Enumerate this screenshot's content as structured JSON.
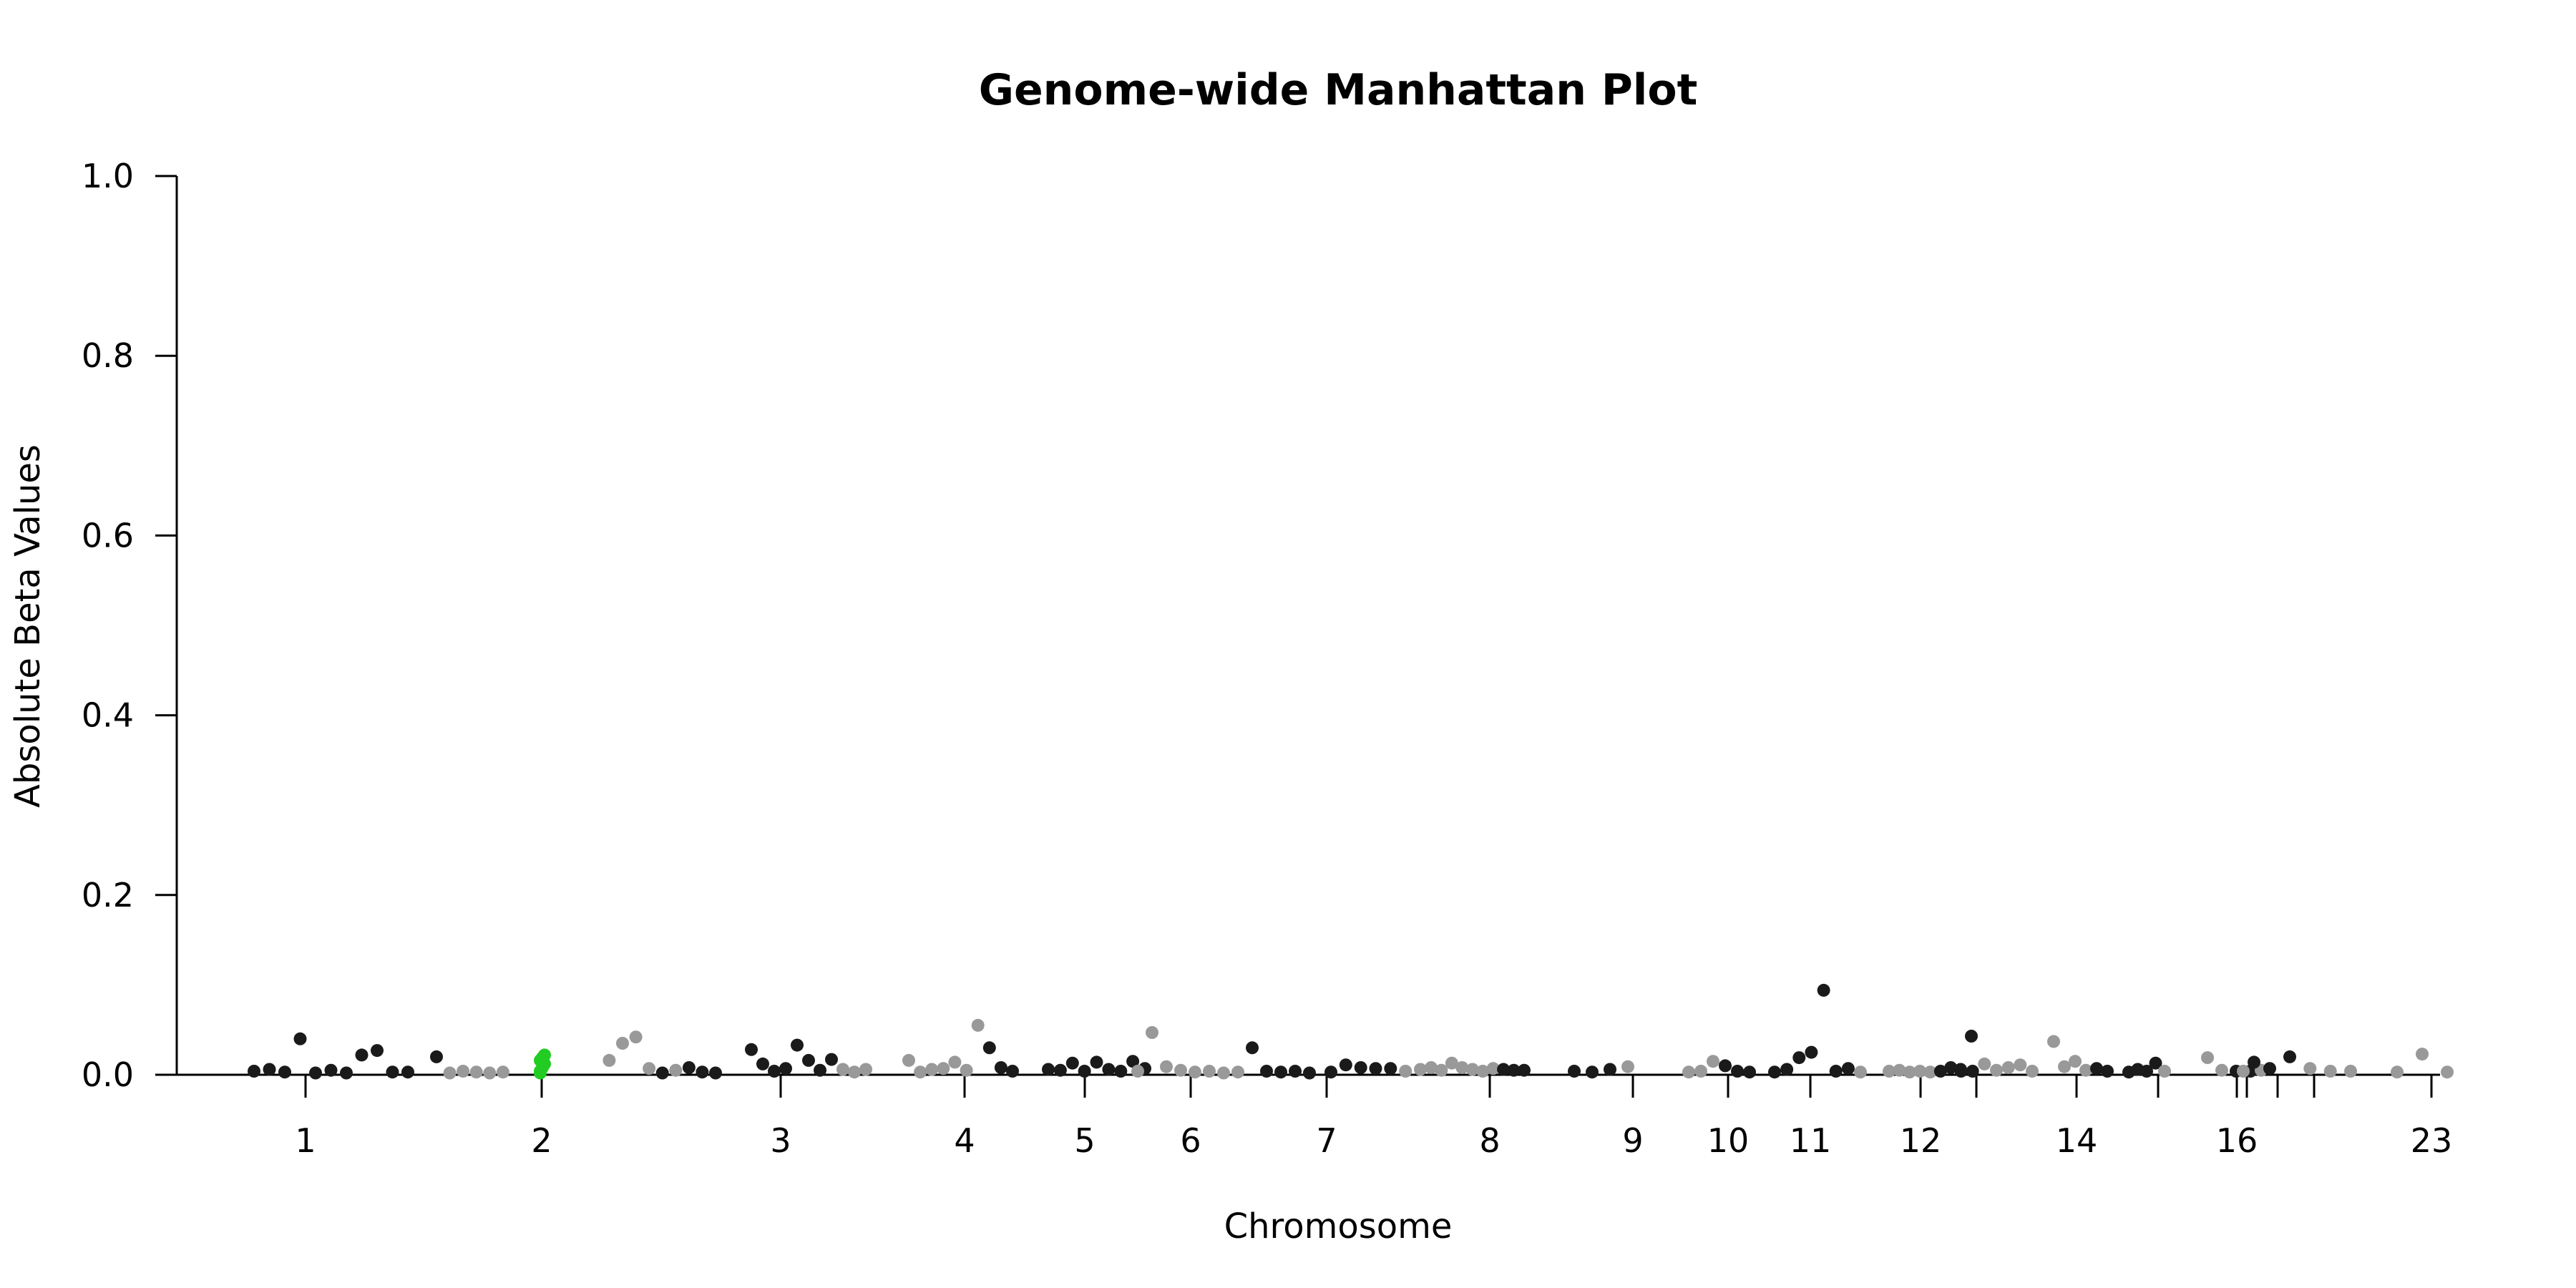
{
  "chart_data": {
    "type": "scatter",
    "title": "Genome-wide Manhattan Plot",
    "xlabel": "Chromosome",
    "ylabel": "Absolute Beta Values",
    "ylim": [
      0,
      1.0
    ],
    "yticks": [
      "0.0",
      "0.2",
      "0.4",
      "0.6",
      "0.8",
      "1.0"
    ],
    "xticks": [
      "1",
      "2",
      "3",
      "4",
      "5",
      "6",
      "7",
      "8",
      "9",
      "10",
      "11",
      "12",
      "",
      "14",
      "",
      "16",
      "",
      "",
      "",
      "23"
    ],
    "grid": false,
    "colors": {
      "dark": "#1a1a1a",
      "light": "#999999",
      "highlight": "#22cc22"
    },
    "points": [
      {
        "chr": "1",
        "y": 0.004,
        "c": "dark"
      },
      {
        "chr": "1",
        "y": 0.006,
        "c": "dark"
      },
      {
        "chr": "1",
        "y": 0.003,
        "c": "dark"
      },
      {
        "chr": "1",
        "y": 0.04,
        "c": "dark"
      },
      {
        "chr": "1",
        "y": 0.002,
        "c": "dark"
      },
      {
        "chr": "1",
        "y": 0.005,
        "c": "dark"
      },
      {
        "chr": "1",
        "y": 0.002,
        "c": "dark"
      },
      {
        "chr": "1",
        "y": 0.022,
        "c": "dark"
      },
      {
        "chr": "1",
        "y": 0.027,
        "c": "dark"
      },
      {
        "chr": "1",
        "y": 0.003,
        "c": "dark"
      },
      {
        "chr": "1",
        "y": 0.003,
        "c": "dark"
      },
      {
        "chr": "2",
        "y": 0.02,
        "c": "dark"
      },
      {
        "chr": "2",
        "y": 0.002,
        "c": "light"
      },
      {
        "chr": "2",
        "y": 0.004,
        "c": "light"
      },
      {
        "chr": "2",
        "y": 0.003,
        "c": "light"
      },
      {
        "chr": "2",
        "y": 0.002,
        "c": "light"
      },
      {
        "chr": "2",
        "y": 0.003,
        "c": "light"
      },
      {
        "chr": "2",
        "y": 0.004,
        "c": "highlight"
      },
      {
        "chr": "2",
        "y": 0.008,
        "c": "highlight"
      },
      {
        "chr": "2",
        "y": 0.012,
        "c": "highlight"
      },
      {
        "chr": "2",
        "y": 0.016,
        "c": "highlight"
      },
      {
        "chr": "2",
        "y": 0.019,
        "c": "highlight"
      },
      {
        "chr": "2",
        "y": 0.022,
        "c": "highlight"
      },
      {
        "chr": "2",
        "y": 0.002,
        "c": "highlight"
      },
      {
        "chr": "2",
        "y": 0.016,
        "c": "light"
      },
      {
        "chr": "2",
        "y": 0.035,
        "c": "light"
      },
      {
        "chr": "2",
        "y": 0.042,
        "c": "light"
      },
      {
        "chr": "2",
        "y": 0.007,
        "c": "light"
      },
      {
        "chr": "2",
        "y": 0.002,
        "c": "dark"
      },
      {
        "chr": "2",
        "y": 0.005,
        "c": "light"
      },
      {
        "chr": "2",
        "y": 0.008,
        "c": "dark"
      },
      {
        "chr": "2",
        "y": 0.003,
        "c": "dark"
      },
      {
        "chr": "2",
        "y": 0.002,
        "c": "dark"
      },
      {
        "chr": "3",
        "y": 0.028,
        "c": "dark"
      },
      {
        "chr": "3",
        "y": 0.012,
        "c": "dark"
      },
      {
        "chr": "3",
        "y": 0.004,
        "c": "dark"
      },
      {
        "chr": "3",
        "y": 0.007,
        "c": "dark"
      },
      {
        "chr": "3",
        "y": 0.033,
        "c": "dark"
      },
      {
        "chr": "3",
        "y": 0.016,
        "c": "dark"
      },
      {
        "chr": "3",
        "y": 0.005,
        "c": "dark"
      },
      {
        "chr": "3",
        "y": 0.017,
        "c": "dark"
      },
      {
        "chr": "3",
        "y": 0.006,
        "c": "light"
      },
      {
        "chr": "3",
        "y": 0.003,
        "c": "light"
      },
      {
        "chr": "3",
        "y": 0.006,
        "c": "light"
      },
      {
        "chr": "4",
        "y": 0.016,
        "c": "light"
      },
      {
        "chr": "4",
        "y": 0.003,
        "c": "light"
      },
      {
        "chr": "4",
        "y": 0.006,
        "c": "light"
      },
      {
        "chr": "4",
        "y": 0.007,
        "c": "light"
      },
      {
        "chr": "4",
        "y": 0.014,
        "c": "light"
      },
      {
        "chr": "4",
        "y": 0.005,
        "c": "light"
      },
      {
        "chr": "4",
        "y": 0.055,
        "c": "light"
      },
      {
        "chr": "4",
        "y": 0.03,
        "c": "dark"
      },
      {
        "chr": "4",
        "y": 0.008,
        "c": "dark"
      },
      {
        "chr": "4",
        "y": 0.004,
        "c": "dark"
      },
      {
        "chr": "5",
        "y": 0.006,
        "c": "dark"
      },
      {
        "chr": "5",
        "y": 0.005,
        "c": "dark"
      },
      {
        "chr": "5",
        "y": 0.013,
        "c": "dark"
      },
      {
        "chr": "5",
        "y": 0.004,
        "c": "dark"
      },
      {
        "chr": "5",
        "y": 0.014,
        "c": "dark"
      },
      {
        "chr": "5",
        "y": 0.006,
        "c": "dark"
      },
      {
        "chr": "5",
        "y": 0.004,
        "c": "dark"
      },
      {
        "chr": "5",
        "y": 0.015,
        "c": "dark"
      },
      {
        "chr": "5",
        "y": 0.007,
        "c": "dark"
      },
      {
        "chr": "6",
        "y": 0.004,
        "c": "light"
      },
      {
        "chr": "6",
        "y": 0.047,
        "c": "light"
      },
      {
        "chr": "6",
        "y": 0.009,
        "c": "light"
      },
      {
        "chr": "6",
        "y": 0.005,
        "c": "light"
      },
      {
        "chr": "6",
        "y": 0.003,
        "c": "light"
      },
      {
        "chr": "6",
        "y": 0.004,
        "c": "light"
      },
      {
        "chr": "6",
        "y": 0.002,
        "c": "light"
      },
      {
        "chr": "6",
        "y": 0.003,
        "c": "light"
      },
      {
        "chr": "6",
        "y": 0.03,
        "c": "dark"
      },
      {
        "chr": "6",
        "y": 0.004,
        "c": "dark"
      },
      {
        "chr": "6",
        "y": 0.003,
        "c": "dark"
      },
      {
        "chr": "6",
        "y": 0.004,
        "c": "dark"
      },
      {
        "chr": "6",
        "y": 0.002,
        "c": "dark"
      },
      {
        "chr": "7",
        "y": 0.003,
        "c": "dark"
      },
      {
        "chr": "7",
        "y": 0.011,
        "c": "dark"
      },
      {
        "chr": "7",
        "y": 0.008,
        "c": "dark"
      },
      {
        "chr": "7",
        "y": 0.007,
        "c": "dark"
      },
      {
        "chr": "7",
        "y": 0.007,
        "c": "dark"
      },
      {
        "chr": "7",
        "y": 0.004,
        "c": "light"
      },
      {
        "chr": "7",
        "y": 0.006,
        "c": "light"
      },
      {
        "chr": "8",
        "y": 0.008,
        "c": "light"
      },
      {
        "chr": "8",
        "y": 0.005,
        "c": "light"
      },
      {
        "chr": "8",
        "y": 0.013,
        "c": "light"
      },
      {
        "chr": "8",
        "y": 0.008,
        "c": "light"
      },
      {
        "chr": "8",
        "y": 0.006,
        "c": "light"
      },
      {
        "chr": "8",
        "y": 0.004,
        "c": "light"
      },
      {
        "chr": "8",
        "y": 0.007,
        "c": "light"
      },
      {
        "chr": "8",
        "y": 0.006,
        "c": "dark"
      },
      {
        "chr": "8",
        "y": 0.005,
        "c": "dark"
      },
      {
        "chr": "8",
        "y": 0.005,
        "c": "dark"
      },
      {
        "chr": "9",
        "y": 0.004,
        "c": "dark"
      },
      {
        "chr": "9",
        "y": 0.003,
        "c": "dark"
      },
      {
        "chr": "9",
        "y": 0.006,
        "c": "dark"
      },
      {
        "chr": "9",
        "y": 0.009,
        "c": "light"
      },
      {
        "chr": "10",
        "y": 0.003,
        "c": "light"
      },
      {
        "chr": "10",
        "y": 0.004,
        "c": "light"
      },
      {
        "chr": "10",
        "y": 0.015,
        "c": "light"
      },
      {
        "chr": "10",
        "y": 0.01,
        "c": "dark"
      },
      {
        "chr": "10",
        "y": 0.004,
        "c": "dark"
      },
      {
        "chr": "10",
        "y": 0.003,
        "c": "dark"
      },
      {
        "chr": "11",
        "y": 0.003,
        "c": "dark"
      },
      {
        "chr": "11",
        "y": 0.006,
        "c": "dark"
      },
      {
        "chr": "11",
        "y": 0.019,
        "c": "dark"
      },
      {
        "chr": "11",
        "y": 0.025,
        "c": "dark"
      },
      {
        "chr": "11",
        "y": 0.094,
        "c": "dark"
      },
      {
        "chr": "11",
        "y": 0.004,
        "c": "dark"
      },
      {
        "chr": "11",
        "y": 0.007,
        "c": "dark"
      },
      {
        "chr": "11",
        "y": 0.003,
        "c": "light"
      },
      {
        "chr": "12",
        "y": 0.004,
        "c": "light"
      },
      {
        "chr": "12",
        "y": 0.005,
        "c": "light"
      },
      {
        "chr": "12",
        "y": 0.003,
        "c": "light"
      },
      {
        "chr": "12",
        "y": 0.004,
        "c": "light"
      },
      {
        "chr": "12",
        "y": 0.003,
        "c": "light"
      },
      {
        "chr": "12",
        "y": 0.004,
        "c": "dark"
      },
      {
        "chr": "12",
        "y": 0.008,
        "c": "dark"
      },
      {
        "chr": "12",
        "y": 0.004,
        "c": "dark"
      },
      {
        "chr": "12",
        "y": 0.043,
        "c": "dark"
      },
      {
        "chr": "13",
        "y": 0.006,
        "c": "dark"
      },
      {
        "chr": "13",
        "y": 0.004,
        "c": "dark"
      },
      {
        "chr": "13",
        "y": 0.012,
        "c": "light"
      },
      {
        "chr": "13",
        "y": 0.005,
        "c": "light"
      },
      {
        "chr": "13",
        "y": 0.008,
        "c": "light"
      },
      {
        "chr": "13",
        "y": 0.011,
        "c": "light"
      },
      {
        "chr": "13",
        "y": 0.004,
        "c": "light"
      },
      {
        "chr": "14",
        "y": 0.037,
        "c": "light"
      },
      {
        "chr": "14",
        "y": 0.009,
        "c": "light"
      },
      {
        "chr": "14",
        "y": 0.015,
        "c": "light"
      },
      {
        "chr": "14",
        "y": 0.005,
        "c": "light"
      },
      {
        "chr": "14",
        "y": 0.007,
        "c": "dark"
      },
      {
        "chr": "14",
        "y": 0.004,
        "c": "dark"
      },
      {
        "chr": "15",
        "y": 0.003,
        "c": "dark"
      },
      {
        "chr": "15",
        "y": 0.006,
        "c": "dark"
      },
      {
        "chr": "15",
        "y": 0.004,
        "c": "dark"
      },
      {
        "chr": "15",
        "y": 0.013,
        "c": "dark"
      },
      {
        "chr": "15",
        "y": 0.004,
        "c": "light"
      },
      {
        "chr": "16",
        "y": 0.019,
        "c": "light"
      },
      {
        "chr": "16",
        "y": 0.005,
        "c": "light"
      },
      {
        "chr": "16",
        "y": 0.004,
        "c": "dark"
      },
      {
        "chr": "16",
        "y": 0.004,
        "c": "dark"
      },
      {
        "chr": "17",
        "y": 0.004,
        "c": "light"
      },
      {
        "chr": "17",
        "y": 0.005,
        "c": "light"
      },
      {
        "chr": "18",
        "y": 0.014,
        "c": "dark"
      },
      {
        "chr": "18",
        "y": 0.007,
        "c": "dark"
      },
      {
        "chr": "19",
        "y": 0.02,
        "c": "dark"
      },
      {
        "chr": "19",
        "y": 0.007,
        "c": "light"
      },
      {
        "chr": "19",
        "y": 0.004,
        "c": "light"
      },
      {
        "chr": "19",
        "y": 0.004,
        "c": "light"
      },
      {
        "chr": "23",
        "y": 0.003,
        "c": "light"
      },
      {
        "chr": "23",
        "y": 0.023,
        "c": "light"
      },
      {
        "chr": "23",
        "y": 0.003,
        "c": "light"
      }
    ]
  }
}
